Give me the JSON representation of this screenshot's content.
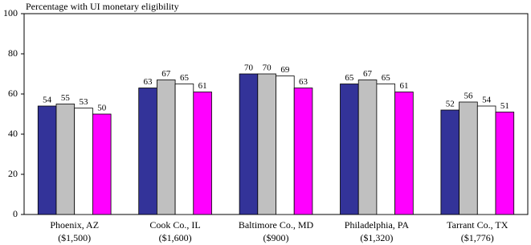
{
  "chart_data": {
    "type": "bar",
    "title": "Percentage with UI monetary eligibility",
    "categories": [
      [
        "Phoenix, AZ",
        "($1,500)"
      ],
      [
        "Cook Co., IL",
        "($1,600)"
      ],
      [
        "Baltimore Co., MD",
        "($900)"
      ],
      [
        "Philadelphia, PA",
        "($1,320)"
      ],
      [
        "Tarrant Co., TX",
        "($1,776)"
      ]
    ],
    "series": [
      {
        "color": "#333399",
        "values": [
          54,
          63,
          70,
          65,
          52
        ]
      },
      {
        "color": "#c0c0c0",
        "values": [
          55,
          67,
          70,
          67,
          56
        ]
      },
      {
        "color": "#ffffff",
        "values": [
          53,
          65,
          69,
          65,
          54
        ]
      },
      {
        "color": "#ff00ff",
        "values": [
          50,
          61,
          63,
          61,
          51
        ]
      }
    ],
    "ylim": [
      0,
      100
    ],
    "yticks": [
      0,
      20,
      40,
      60,
      80,
      100
    ],
    "grid": false
  }
}
